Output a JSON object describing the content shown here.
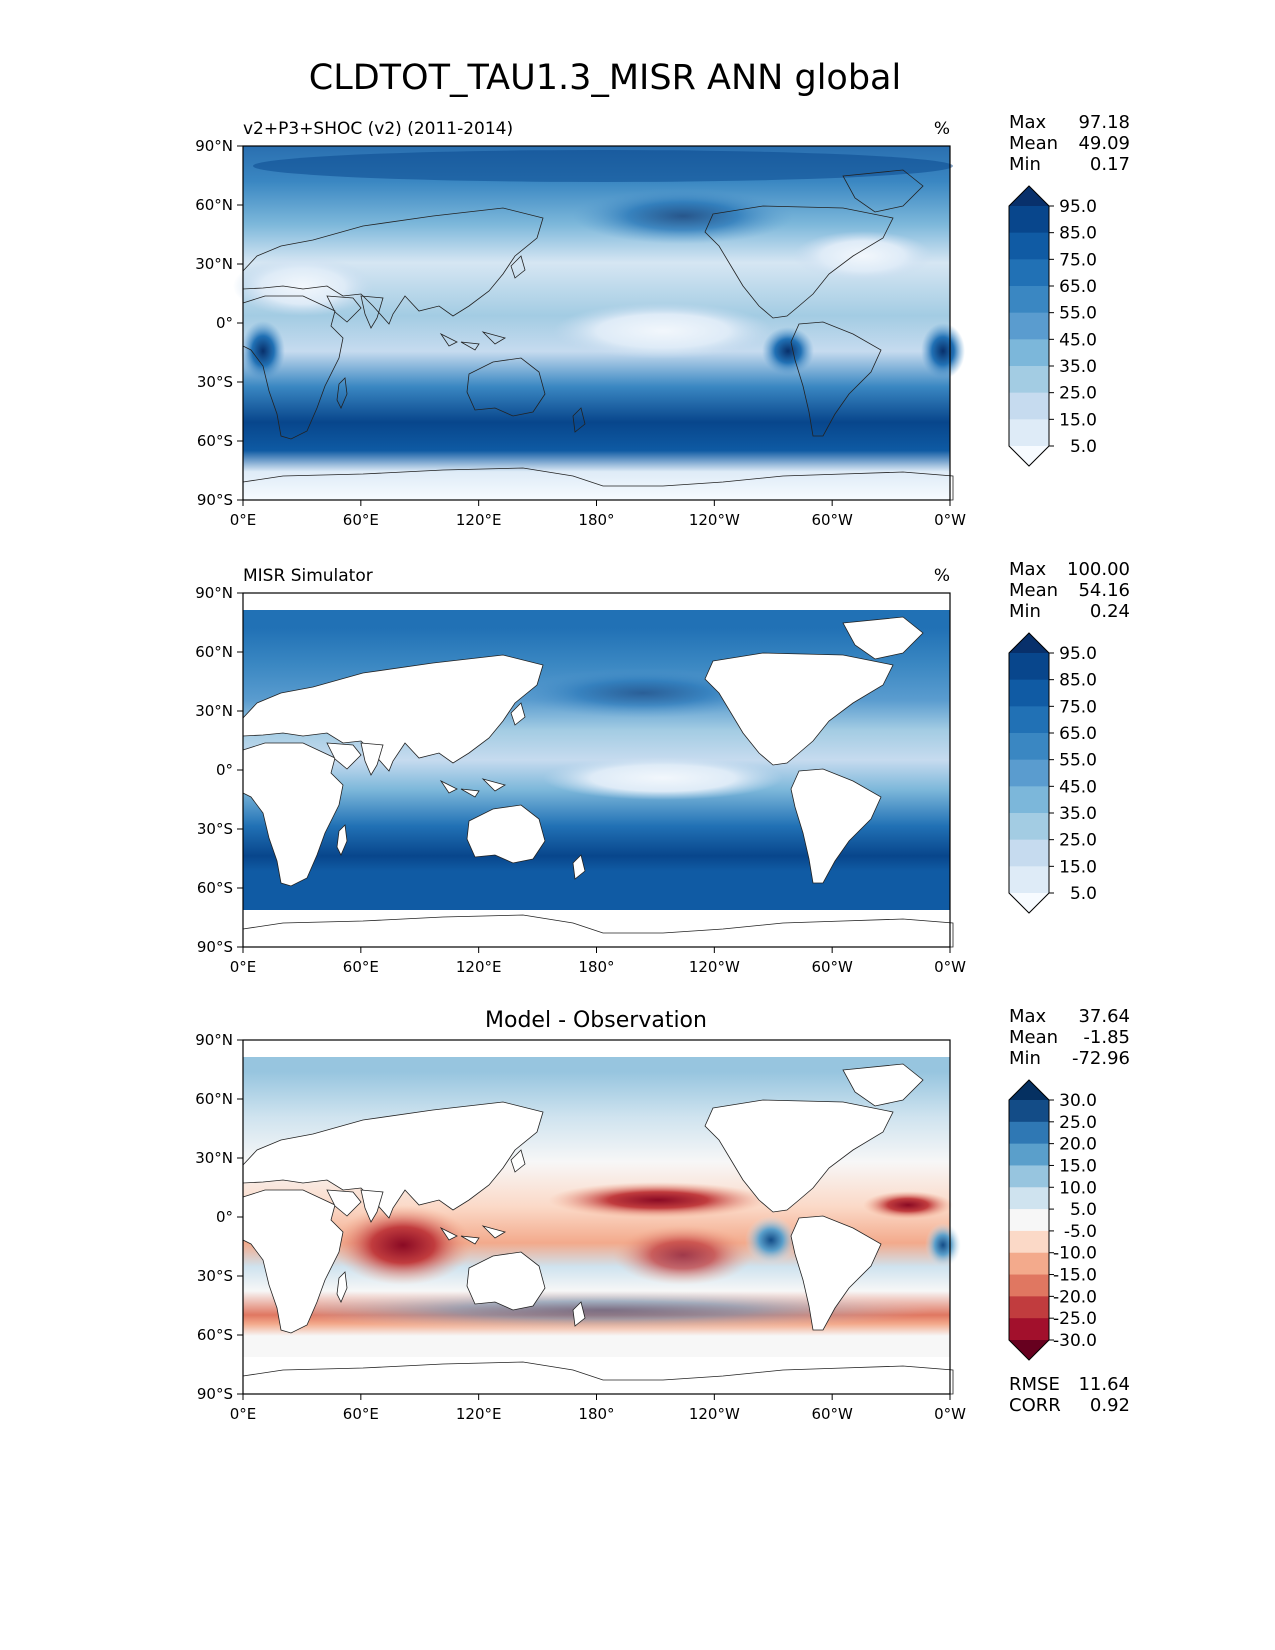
{
  "title": "CLDTOT_TAU1.3_MISR ANN global",
  "chart_data": [
    {
      "type": "heatmap",
      "panel_title": "v2+P3+SHOC (v2) (2011-2014)",
      "units": "%",
      "xticks": [
        "0°E",
        "60°E",
        "120°E",
        "180°",
        "120°W",
        "60°W",
        "0°W"
      ],
      "yticks": [
        "90°N",
        "60°N",
        "30°N",
        "0°",
        "30°S",
        "60°S",
        "90°S"
      ],
      "stats": [
        {
          "label": "Max",
          "value": "97.18"
        },
        {
          "label": "Mean",
          "value": "49.09"
        },
        {
          "label": "Min",
          "value": "0.17"
        }
      ],
      "colorbar": {
        "labels": [
          "95.0",
          "85.0",
          "75.0",
          "65.0",
          "55.0",
          "45.0",
          "35.0",
          "25.0",
          "15.0",
          "5.0"
        ],
        "colors": [
          "#08306b",
          "#08468c",
          "#105ba4",
          "#2171b5",
          "#3a87c2",
          "#5a9ccf",
          "#7cb7da",
          "#a3cce3",
          "#c6dbef",
          "#deebf7",
          "#f7fbff"
        ]
      }
    },
    {
      "type": "heatmap",
      "panel_title": "MISR Simulator",
      "units": "%",
      "xticks": [
        "0°E",
        "60°E",
        "120°E",
        "180°",
        "120°W",
        "60°W",
        "0°W"
      ],
      "yticks": [
        "90°N",
        "60°N",
        "30°N",
        "0°",
        "30°S",
        "60°S",
        "90°S"
      ],
      "stats": [
        {
          "label": "Max",
          "value": "100.00"
        },
        {
          "label": "Mean",
          "value": "54.16"
        },
        {
          "label": "Min",
          "value": "0.24"
        }
      ],
      "colorbar": {
        "labels": [
          "95.0",
          "85.0",
          "75.0",
          "65.0",
          "55.0",
          "45.0",
          "35.0",
          "25.0",
          "15.0",
          "5.0"
        ],
        "colors": [
          "#08306b",
          "#08468c",
          "#105ba4",
          "#2171b5",
          "#3a87c2",
          "#5a9ccf",
          "#7cb7da",
          "#a3cce3",
          "#c6dbef",
          "#deebf7",
          "#f7fbff"
        ]
      }
    },
    {
      "type": "heatmap",
      "panel_title": "Model - Observation",
      "units": "",
      "xticks": [
        "0°E",
        "60°E",
        "120°E",
        "180°",
        "120°W",
        "60°W",
        "0°W"
      ],
      "yticks": [
        "90°N",
        "60°N",
        "30°N",
        "0°",
        "30°S",
        "60°S",
        "90°S"
      ],
      "stats": [
        {
          "label": "Max",
          "value": "37.64"
        },
        {
          "label": "Mean",
          "value": "-1.85"
        },
        {
          "label": "Min",
          "value": "-72.96"
        }
      ],
      "colorbar": {
        "labels": [
          "30.0",
          "25.0",
          "20.0",
          "15.0",
          "10.0",
          "5.0",
          "-5.0",
          "-10.0",
          "-15.0",
          "-20.0",
          "-25.0",
          "-30.0"
        ],
        "colors": [
          "#053061",
          "#134c87",
          "#2f78b4",
          "#5a9fcb",
          "#97c5df",
          "#cfe3ef",
          "#f7f7f7",
          "#fbd9c7",
          "#f3aa8c",
          "#e07761",
          "#c13c3e",
          "#a2102c",
          "#67001f"
        ]
      },
      "metrics": [
        {
          "label": "RMSE",
          "value": "11.64"
        },
        {
          "label": "CORR",
          "value": "0.92"
        }
      ]
    }
  ]
}
